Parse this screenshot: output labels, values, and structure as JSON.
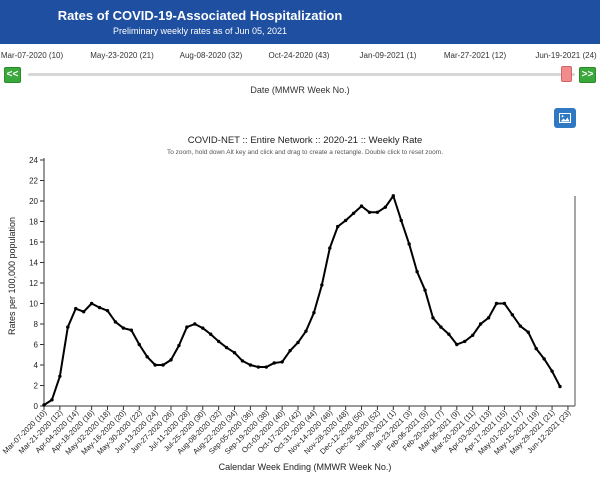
{
  "header": {
    "title": "Rates of COVID-19-Associated Hospitalization",
    "subtitle": "Preliminary weekly rates as of Jun 05, 2021"
  },
  "slider": {
    "date_labels": [
      "Mar-07-2020 (10)",
      "May-23-2020 (21)",
      "Aug-08-2020 (32)",
      "Oct-24-2020 (43)",
      "Jan-09-2021 (1)",
      "Mar-27-2021 (12)",
      "Jun-19-2021 (24)"
    ],
    "prev_label": "<<",
    "next_label": ">>",
    "caption": "Date (MMWR Week No.)"
  },
  "download_icon": "image-icon",
  "chart_data": {
    "type": "line",
    "title": "COVID-NET :: Entire Network :: 2020-21 :: Weekly Rate",
    "subtitle": "To zoom, hold down Alt key and click and drag to create a rectangle. Double click to reset zoom.",
    "xlabel": "Calendar Week Ending (MMWR Week No.)",
    "ylabel": "Rates per 100,000 population",
    "ylim": [
      0,
      24
    ],
    "yticks": [
      0,
      2,
      4,
      6,
      8,
      10,
      12,
      14,
      16,
      18,
      20,
      22,
      24
    ],
    "grid": false,
    "line_color": "#000000",
    "x_tick_labels": [
      "Mar-07-2020 (10)",
      "Mar-21-2020 (12)",
      "Apr-04-2020 (14)",
      "Apr-18-2020 (16)",
      "May-02-2020 (18)",
      "May-16-2020 (20)",
      "May-30-2020 (22)",
      "Jun-13-2020 (24)",
      "Jun-27-2020 (26)",
      "Jul-11-2020 (28)",
      "Jul-25-2020 (30)",
      "Aug-08-2020 (32)",
      "Aug-22-2020 (34)",
      "Sep-05-2020 (36)",
      "Sep-19-2020 (38)",
      "Oct-03-2020 (40)",
      "Oct-17-2020 (42)",
      "Oct-31-2020 (44)",
      "Nov-14-2020 (46)",
      "Nov-28-2020 (48)",
      "Dec-12-2020 (50)",
      "Dec-26-2020 (52)",
      "Jan-09-2021 (1)",
      "Jan-23-2021 (3)",
      "Feb-06-2021 (5)",
      "Feb-20-2021 (7)",
      "Mar-06-2021 (9)",
      "Mar-20-2021 (11)",
      "Apr-03-2021 (13)",
      "Apr-17-2021 (15)",
      "May-01-2021 (17)",
      "May-15-2021 (19)",
      "May-29-2021 (21)",
      "Jun-12-2021 (23)"
    ],
    "series": [
      {
        "values": [
          0.1,
          0.6,
          2.9,
          7.7,
          9.5,
          9.2,
          10.0,
          9.6,
          9.3,
          8.2,
          7.6,
          7.4,
          6.0,
          4.8,
          4.0,
          4.0,
          4.5,
          5.9,
          7.7,
          8.0,
          7.6,
          7.0,
          6.3,
          5.7,
          5.2,
          4.4,
          4.0,
          3.8,
          3.8,
          4.2,
          4.3,
          5.4,
          6.2,
          7.3,
          9.1,
          11.8,
          15.4,
          17.5,
          18.1,
          18.8,
          19.5,
          18.9,
          18.9,
          19.4,
          20.5,
          18.1,
          15.8,
          13.1,
          11.3,
          8.6,
          7.7,
          7.0,
          6.0,
          6.3,
          6.9,
          8.0,
          8.6,
          10.0,
          10.0,
          8.9,
          7.8,
          7.2,
          5.6,
          4.6,
          3.4,
          1.9
        ]
      }
    ]
  }
}
